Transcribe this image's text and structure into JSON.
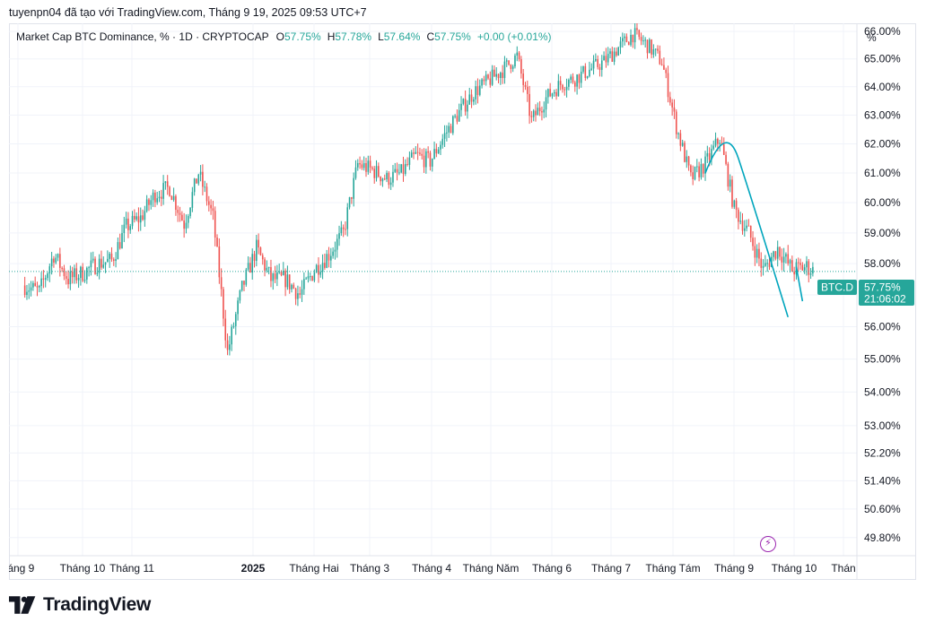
{
  "attribution": "tuyenpn04 đã tạo với TradingView.com, Tháng 9 19, 2025 09:53 UTC+7",
  "legend": {
    "title": "Market Cap BTC Dominance, % · 1D · CRYPTOCAP",
    "o_key": "O",
    "o_val": "57.75%",
    "h_key": "H",
    "h_val": "57.78%",
    "l_key": "L",
    "l_val": "57.64%",
    "c_key": "C",
    "c_val": "57.75%",
    "change": "+0.00 (+0.01%)"
  },
  "axis_unit_label": "%",
  "price_tag": {
    "symbol": "BTC.D",
    "price": "57.75%",
    "countdown": "21:06:02"
  },
  "logo_text": "TradingView",
  "icons": {
    "logo": "tradingview-logo-icon",
    "alert": "lightning-icon"
  },
  "colors": {
    "up": "#26a69a",
    "down": "#ef5350",
    "drawing": "#00a5bd",
    "tag": "#26a69a",
    "alert": "#9c27b0"
  },
  "chart_data": {
    "type": "candlestick",
    "y_scale": "log",
    "y_unit": "%",
    "ylim": [
      49.3,
      66.3
    ],
    "y_ticks": [
      "66.00%",
      "65.00%",
      "64.00%",
      "63.00%",
      "62.00%",
      "61.00%",
      "60.00%",
      "59.00%",
      "58.00%",
      "57.00%",
      "56.00%",
      "55.00%",
      "54.00%",
      "53.00%",
      "52.20%",
      "51.40%",
      "50.60%",
      "49.80%"
    ],
    "x_ticks": [
      "háng 9",
      "Tháng 10",
      "Tháng 11",
      "2025",
      "Tháng Hai",
      "Tháng 3",
      "Tháng 4",
      "Tháng Năm",
      "Tháng 6",
      "Tháng 7",
      "Tháng Tám",
      "Tháng 9",
      "Tháng 10",
      "Thán"
    ],
    "last_close": 57.75,
    "ohlc_path_close": [
      {
        "x": "2024-09-01",
        "y": 57.3
      },
      {
        "x": "2024-09-08",
        "y": 57.1
      },
      {
        "x": "2024-09-15",
        "y": 58.3
      },
      {
        "x": "2024-09-22",
        "y": 57.5
      },
      {
        "x": "2024-09-29",
        "y": 57.7
      },
      {
        "x": "2024-10-06",
        "y": 58.0
      },
      {
        "x": "2024-10-13",
        "y": 58.1
      },
      {
        "x": "2024-10-20",
        "y": 59.2
      },
      {
        "x": "2024-10-27",
        "y": 59.5
      },
      {
        "x": "2024-11-03",
        "y": 60.3
      },
      {
        "x": "2024-11-10",
        "y": 60.5
      },
      {
        "x": "2024-11-17",
        "y": 59.3
      },
      {
        "x": "2024-11-24",
        "y": 61.0
      },
      {
        "x": "2024-12-01",
        "y": 59.5
      },
      {
        "x": "2024-12-08",
        "y": 55.2
      },
      {
        "x": "2024-12-15",
        "y": 57.2
      },
      {
        "x": "2024-12-22",
        "y": 58.5
      },
      {
        "x": "2024-12-29",
        "y": 57.5
      },
      {
        "x": "2025-01-05",
        "y": 57.5
      },
      {
        "x": "2025-01-12",
        "y": 57.0
      },
      {
        "x": "2025-01-19",
        "y": 57.8
      },
      {
        "x": "2025-01-26",
        "y": 58.3
      },
      {
        "x": "2025-02-02",
        "y": 59.0
      },
      {
        "x": "2025-02-09",
        "y": 61.3
      },
      {
        "x": "2025-02-16",
        "y": 61.1
      },
      {
        "x": "2025-02-23",
        "y": 60.8
      },
      {
        "x": "2025-03-02",
        "y": 61.0
      },
      {
        "x": "2025-03-09",
        "y": 61.6
      },
      {
        "x": "2025-03-16",
        "y": 61.4
      },
      {
        "x": "2025-03-23",
        "y": 62.3
      },
      {
        "x": "2025-03-30",
        "y": 63.1
      },
      {
        "x": "2025-04-06",
        "y": 63.8
      },
      {
        "x": "2025-04-13",
        "y": 64.2
      },
      {
        "x": "2025-04-20",
        "y": 64.6
      },
      {
        "x": "2025-04-27",
        "y": 65.1
      },
      {
        "x": "2025-05-04",
        "y": 62.8
      },
      {
        "x": "2025-05-11",
        "y": 63.6
      },
      {
        "x": "2025-05-18",
        "y": 64.1
      },
      {
        "x": "2025-05-25",
        "y": 64.3
      },
      {
        "x": "2025-06-01",
        "y": 64.6
      },
      {
        "x": "2025-06-08",
        "y": 64.9
      },
      {
        "x": "2025-06-15",
        "y": 65.4
      },
      {
        "x": "2025-06-22",
        "y": 65.9
      },
      {
        "x": "2025-06-29",
        "y": 65.5
      },
      {
        "x": "2025-07-06",
        "y": 64.9
      },
      {
        "x": "2025-07-13",
        "y": 62.6
      },
      {
        "x": "2025-07-20",
        "y": 60.8
      },
      {
        "x": "2025-07-27",
        "y": 61.3
      },
      {
        "x": "2025-08-03",
        "y": 62.2
      },
      {
        "x": "2025-08-10",
        "y": 59.8
      },
      {
        "x": "2025-08-17",
        "y": 59.0
      },
      {
        "x": "2025-08-24",
        "y": 57.8
      },
      {
        "x": "2025-08-31",
        "y": 58.5
      },
      {
        "x": "2025-09-07",
        "y": 57.8
      },
      {
        "x": "2025-09-14",
        "y": 57.9
      },
      {
        "x": "2025-09-18",
        "y": 57.75
      }
    ]
  }
}
